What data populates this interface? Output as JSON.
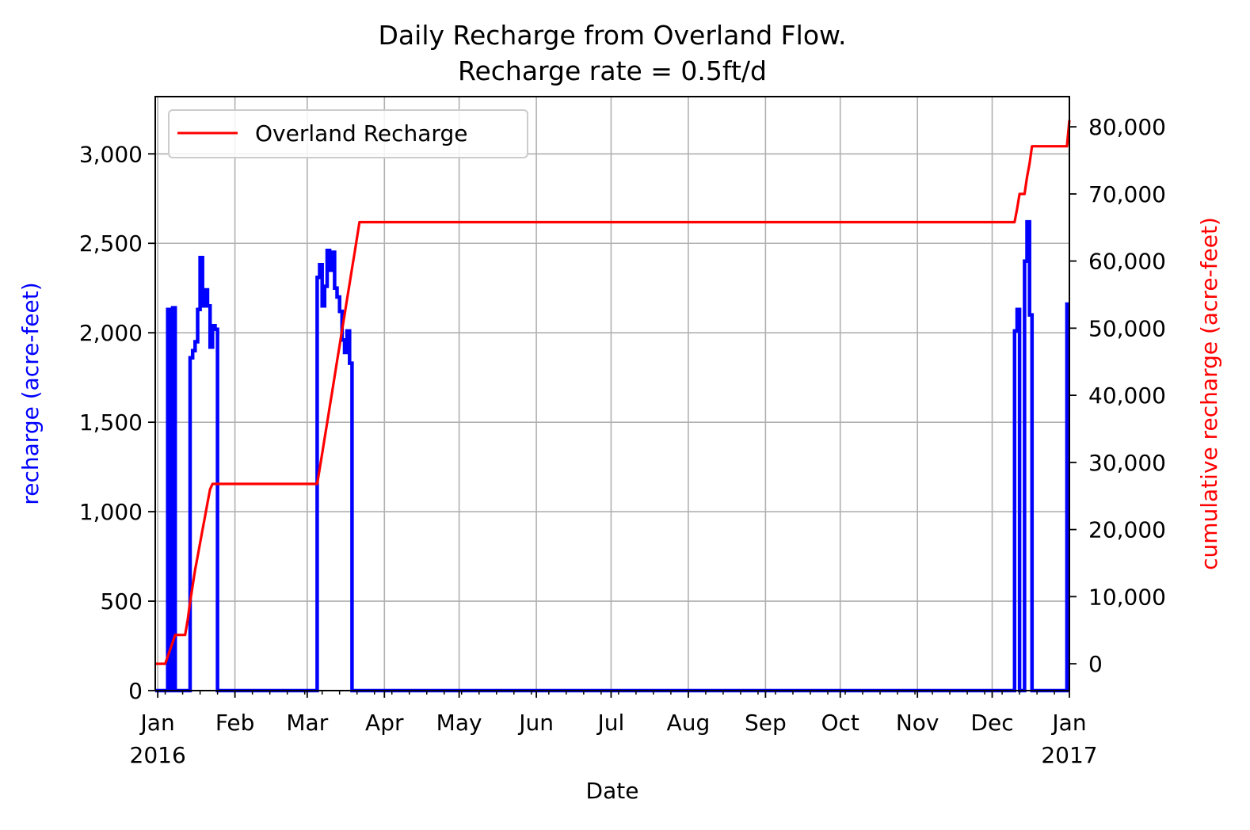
{
  "chart_data": {
    "type": "line",
    "title": [
      "Daily Recharge from Overland Flow.",
      "Recharge rate = 0.5ft/d"
    ],
    "xlabel": "Date",
    "ylabel": "recharge (acre-feet)",
    "y2label": "cumulative recharge (acre-feet)",
    "xlim": [
      "2015-12-31",
      "2017-01-01"
    ],
    "ylim": [
      0,
      3320
    ],
    "y2lim": [
      -4000,
      84500
    ],
    "grid": true,
    "legend": {
      "position": "upper-left",
      "entries": [
        "Overland Recharge"
      ]
    },
    "colors": {
      "recharge": "#0000ff",
      "cumulative": "#ff0000",
      "grid": "#b0b0b0"
    },
    "x_ticks": [
      {
        "date": "2016-01-01",
        "label": [
          "Jan",
          "2016"
        ]
      },
      {
        "date": "2016-02-01",
        "label": [
          "Feb"
        ]
      },
      {
        "date": "2016-03-01",
        "label": [
          "Mar"
        ]
      },
      {
        "date": "2016-04-01",
        "label": [
          "Apr"
        ]
      },
      {
        "date": "2016-05-01",
        "label": [
          "May"
        ]
      },
      {
        "date": "2016-06-01",
        "label": [
          "Jun"
        ]
      },
      {
        "date": "2016-07-01",
        "label": [
          "Jul"
        ]
      },
      {
        "date": "2016-08-01",
        "label": [
          "Aug"
        ]
      },
      {
        "date": "2016-09-01",
        "label": [
          "Sep"
        ]
      },
      {
        "date": "2016-10-01",
        "label": [
          "Oct"
        ]
      },
      {
        "date": "2016-11-01",
        "label": [
          "Nov"
        ]
      },
      {
        "date": "2016-12-01",
        "label": [
          "Dec"
        ]
      },
      {
        "date": "2017-01-01",
        "label": [
          "Jan",
          "2017"
        ]
      }
    ],
    "y_ticks": [
      {
        "value": 0,
        "label": "0"
      },
      {
        "value": 500,
        "label": "500"
      },
      {
        "value": 1000,
        "label": "1,000"
      },
      {
        "value": 1500,
        "label": "1,500"
      },
      {
        "value": 2000,
        "label": "2,000"
      },
      {
        "value": 2500,
        "label": "2,500"
      },
      {
        "value": 3000,
        "label": "3,000"
      }
    ],
    "y2_ticks": [
      {
        "value": 0,
        "label": "0"
      },
      {
        "value": 10000,
        "label": "10,000"
      },
      {
        "value": 20000,
        "label": "20,000"
      },
      {
        "value": 30000,
        "label": "30,000"
      },
      {
        "value": 40000,
        "label": "40,000"
      },
      {
        "value": 50000,
        "label": "50,000"
      },
      {
        "value": 60000,
        "label": "60,000"
      },
      {
        "value": 70000,
        "label": "70,000"
      },
      {
        "value": 80000,
        "label": "80,000"
      }
    ],
    "series": [
      {
        "axis": "left",
        "step": true,
        "x": [
          "2015-12-31",
          "2016-01-05",
          "2016-01-06",
          "2016-01-07",
          "2016-01-08",
          "2016-01-09",
          "2016-01-10",
          "2016-01-14",
          "2016-01-15",
          "2016-01-16",
          "2016-01-17",
          "2016-01-18",
          "2016-01-19",
          "2016-01-20",
          "2016-01-21",
          "2016-01-22",
          "2016-01-23",
          "2016-01-24",
          "2016-01-25",
          "2016-01-26",
          "2016-03-05",
          "2016-03-06",
          "2016-03-07",
          "2016-03-08",
          "2016-03-09",
          "2016-03-10",
          "2016-03-11",
          "2016-03-12",
          "2016-03-13",
          "2016-03-14",
          "2016-03-15",
          "2016-03-16",
          "2016-03-17",
          "2016-03-18",
          "2016-03-19",
          "2016-03-20",
          "2016-03-21",
          "2016-03-22",
          "2016-03-23",
          "2016-03-24",
          "2016-03-25",
          "2016-03-26",
          "2016-03-27",
          "2016-12-10",
          "2016-12-11",
          "2016-12-12",
          "2016-12-13",
          "2016-12-14",
          "2016-12-15",
          "2016-12-16",
          "2016-12-17",
          "2016-12-18",
          "2016-12-19",
          "2016-12-20",
          "2016-12-21",
          "2016-12-22",
          "2016-12-23",
          "2016-12-31",
          "2017-01-01"
        ],
        "y": [
          0,
          2130,
          0,
          2140,
          0,
          0,
          0,
          1860,
          1900,
          1950,
          2130,
          2420,
          2150,
          2240,
          2150,
          1920,
          2040,
          2020,
          0,
          0,
          2310,
          2380,
          2150,
          2260,
          2460,
          2350,
          2450,
          2250,
          2200,
          2120,
          1960,
          1890,
          2010,
          1830,
          0,
          0,
          0,
          0,
          0,
          0,
          0,
          0,
          0,
          2010,
          2130,
          0,
          0,
          2400,
          2620,
          2100,
          0,
          0,
          0,
          0,
          0,
          0,
          0,
          2160,
          2160
        ]
      },
      {
        "name": "Overland Recharge",
        "axis": "right",
        "x": [
          "2015-12-31",
          "2016-01-02",
          "2016-01-03",
          "2016-01-04",
          "2016-01-08",
          "2016-01-09",
          "2016-01-12",
          "2016-01-13",
          "2016-01-14",
          "2016-01-16",
          "2016-01-17",
          "2016-01-18",
          "2016-01-19",
          "2016-01-20",
          "2016-01-21",
          "2016-01-22",
          "2016-01-23",
          "2016-01-24",
          "2016-01-25",
          "2016-01-26",
          "2016-03-05",
          "2016-03-06",
          "2016-03-07",
          "2016-03-08",
          "2016-03-09",
          "2016-03-10",
          "2016-03-11",
          "2016-03-12",
          "2016-03-13",
          "2016-03-14",
          "2016-03-15",
          "2016-03-16",
          "2016-03-17",
          "2016-03-18",
          "2016-03-19",
          "2016-03-20",
          "2016-03-21",
          "2016-03-22",
          "2016-03-23",
          "2016-03-24",
          "2016-12-10",
          "2016-12-11",
          "2016-12-12",
          "2016-12-13",
          "2016-12-14",
          "2016-12-15",
          "2016-12-16",
          "2016-12-17",
          "2016-12-18",
          "2016-12-30",
          "2016-12-31",
          "2017-01-01"
        ],
        "y": [
          0,
          0,
          0,
          0,
          4300,
          4300,
          4300,
          6500,
          9200,
          14000,
          16000,
          18000,
          20000,
          22000,
          24000,
          26000,
          26800,
          26800,
          26800,
          26800,
          26800,
          29000,
          31300,
          33600,
          35900,
          38200,
          40500,
          42800,
          45100,
          47400,
          49700,
          52000,
          54300,
          56600,
          58900,
          61200,
          63500,
          65800,
          65800,
          65800,
          65800,
          67800,
          70000,
          70000,
          70000,
          72500,
          74500,
          77100,
          77100,
          77100,
          77100,
          81000
        ]
      }
    ]
  }
}
